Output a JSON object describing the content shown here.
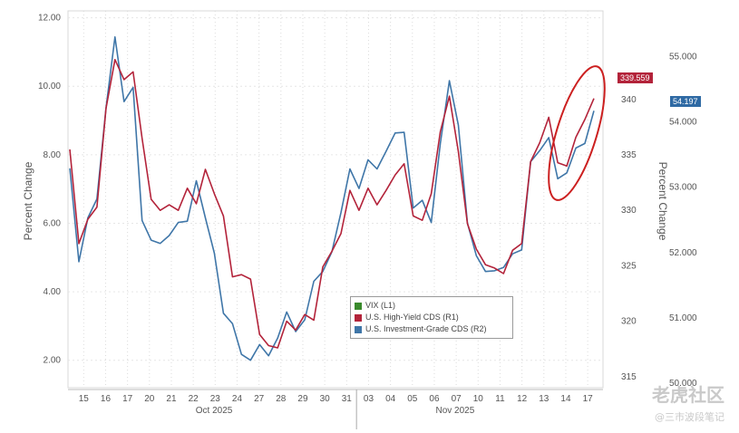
{
  "chart_data": {
    "type": "line",
    "title": "",
    "ylabel_left": "Percent Change",
    "ylabel_right": "Percent Change",
    "left_axis": {
      "ticks": [
        "12.00",
        "10.00",
        "8.00",
        "6.00",
        "4.00",
        "2.00"
      ],
      "ylim": [
        1.2,
        12.2
      ]
    },
    "right_axis_r1": {
      "ticks": [
        "340",
        "335",
        "330",
        "325",
        "320",
        "315"
      ],
      "ylim": [
        314,
        348
      ]
    },
    "right_axis_r2": {
      "ticks": [
        "55.000",
        "54.000",
        "53.000",
        "52.000",
        "51.000",
        "50.000"
      ],
      "ylim": [
        49.93,
        55.7
      ]
    },
    "x_day_labels": [
      "15",
      "16",
      "17",
      "20",
      "21",
      "22",
      "23",
      "24",
      "27",
      "28",
      "29",
      "30",
      "31",
      "03",
      "04",
      "05",
      "06",
      "07",
      "10",
      "11",
      "12",
      "13",
      "14",
      "17"
    ],
    "x_month_labels": [
      "Oct 2025",
      "Nov 2025"
    ],
    "grid": true,
    "legend": "center-bottom",
    "series": [
      {
        "name": "VIX (L1)",
        "axis": "left",
        "color": "#3a8a2c",
        "values": []
      },
      {
        "name": "U.S. High-Yield CDS (R1)",
        "axis": "right_r1",
        "color": "#b3233a",
        "values": [
          335.5,
          327.0,
          329.2,
          330.3,
          339.2,
          343.6,
          341.8,
          342.5,
          336.5,
          331.0,
          330.0,
          330.5,
          330.0,
          332.0,
          330.6,
          333.7,
          331.5,
          329.5,
          324.0,
          324.2,
          323.8,
          318.8,
          317.8,
          317.6,
          320.0,
          319.2,
          320.6,
          320.1,
          324.9,
          326.3,
          327.9,
          331.8,
          330.0,
          332.0,
          330.5,
          331.8,
          333.2,
          334.2,
          329.5,
          329.1,
          331.5,
          337.1,
          340.3,
          335.3,
          328.8,
          326.5,
          325.1,
          324.8,
          324.3,
          326.4,
          327.0,
          334.4,
          336.1,
          338.4,
          334.3,
          334.0,
          336.6,
          338.2,
          340.1
        ]
      },
      {
        "name": "U.S. Investment-Grade CDS (R2)",
        "axis": "right_r2",
        "color": "#3f76a8",
        "values": [
          53.29,
          51.86,
          52.53,
          52.82,
          54.21,
          55.3,
          54.31,
          54.53,
          52.49,
          52.19,
          52.14,
          52.26,
          52.46,
          52.48,
          53.1,
          52.53,
          51.99,
          51.07,
          50.91,
          50.44,
          50.35,
          50.59,
          50.42,
          50.69,
          51.09,
          50.79,
          50.97,
          51.56,
          51.71,
          52.01,
          52.61,
          53.28,
          52.98,
          53.42,
          53.28,
          53.55,
          53.83,
          53.84,
          52.68,
          52.8,
          52.46,
          53.67,
          54.63,
          53.95,
          52.45,
          51.95,
          51.71,
          51.72,
          51.77,
          51.98,
          52.04,
          53.39,
          53.56,
          53.76,
          53.13,
          53.22,
          53.6,
          53.67,
          54.17
        ]
      }
    ],
    "last_value_badges": [
      "339.559",
      "54.197"
    ],
    "highlight": "red ellipse around latest values"
  },
  "watermark": {
    "main": "老虎社区",
    "sub": "@三市波段笔记"
  }
}
